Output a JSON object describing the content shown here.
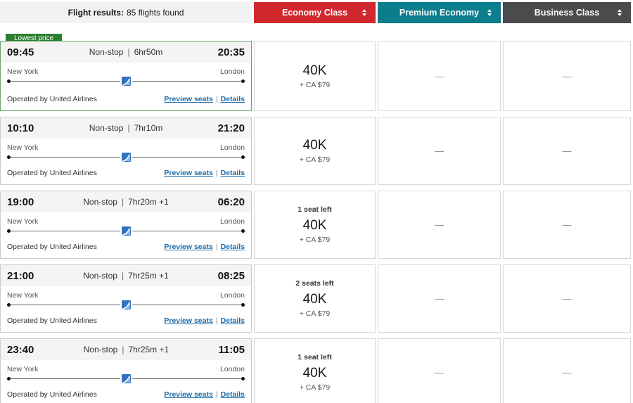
{
  "header": {
    "results_label": "Flight results:",
    "results_count": "85 flights found",
    "columns": [
      {
        "label": "Economy Class",
        "color": "#d0282d"
      },
      {
        "label": "Premium Economy",
        "color": "#0c7d8d"
      },
      {
        "label": "Business Class",
        "color": "#4a4b4d"
      }
    ]
  },
  "badge": {
    "label": "Lowest price",
    "color": "#2b7d2f"
  },
  "links": {
    "preview": "Preview seats",
    "separator": "|",
    "details": "Details"
  },
  "flights": [
    {
      "depart": "09:45",
      "stops": "Non-stop",
      "duration": "6hr50m",
      "arrive": "20:35",
      "origin": "New York",
      "destination": "London",
      "operated_by": "Operated by United Airlines",
      "economy": {
        "seats_note": "",
        "award": "40K",
        "taxes": "+ CA $79"
      },
      "premium": "—",
      "business": "—"
    },
    {
      "depart": "10:10",
      "stops": "Non-stop",
      "duration": "7hr10m",
      "arrive": "21:20",
      "origin": "New York",
      "destination": "London",
      "operated_by": "Operated by United Airlines",
      "economy": {
        "seats_note": "",
        "award": "40K",
        "taxes": "+ CA $79"
      },
      "premium": "—",
      "business": "—"
    },
    {
      "depart": "19:00",
      "stops": "Non-stop",
      "duration": "7hr20m +1",
      "arrive": "06:20",
      "origin": "New York",
      "destination": "London",
      "operated_by": "Operated by United Airlines",
      "economy": {
        "seats_note": "1 seat left",
        "award": "40K",
        "taxes": "+ CA $79"
      },
      "premium": "—",
      "business": "—"
    },
    {
      "depart": "21:00",
      "stops": "Non-stop",
      "duration": "7hr25m +1",
      "arrive": "08:25",
      "origin": "New York",
      "destination": "London",
      "operated_by": "Operated by United Airlines",
      "economy": {
        "seats_note": "2 seats left",
        "award": "40K",
        "taxes": "+ CA $79"
      },
      "premium": "—",
      "business": "—"
    },
    {
      "depart": "23:40",
      "stops": "Non-stop",
      "duration": "7hr25m +1",
      "arrive": "11:05",
      "origin": "New York",
      "destination": "London",
      "operated_by": "Operated by United Airlines",
      "economy": {
        "seats_note": "1 seat left",
        "award": "40K",
        "taxes": "+ CA $79"
      },
      "premium": "—",
      "business": "—"
    }
  ]
}
